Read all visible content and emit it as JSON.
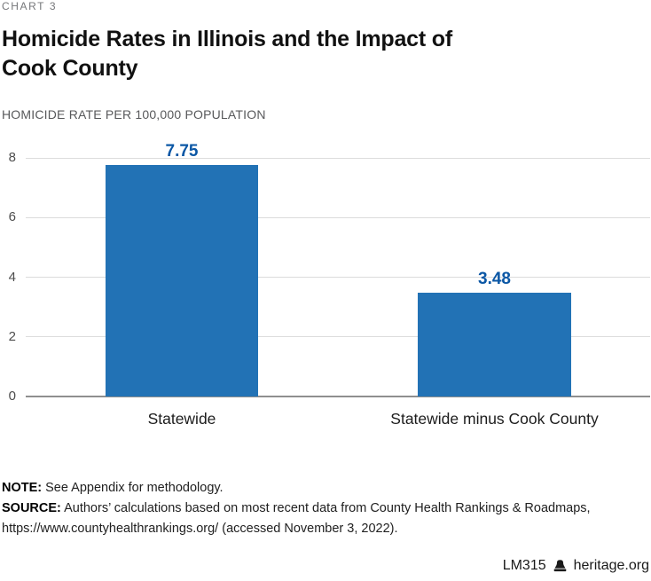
{
  "page": {
    "kicker": "CHART 3",
    "title_line1": "Homicide Rates in Illinois and the Impact of",
    "title_line2": "Cook County",
    "axis_caption": "HOMICIDE RATE PER 100,000 POPULATION"
  },
  "chart_data": {
    "type": "bar",
    "title": "Homicide Rates in Illinois and the Impact of Cook County",
    "ylabel": "HOMICIDE RATE PER 100,000 POPULATION",
    "categories": [
      "Statewide",
      "Statewide minus Cook County"
    ],
    "values": [
      7.75,
      3.48
    ],
    "value_labels": [
      "7.75",
      "3.48"
    ],
    "ylim": [
      0,
      8
    ],
    "yticks": [
      0,
      2,
      4,
      6,
      8
    ],
    "grid": true,
    "legend": "none",
    "colors": {
      "bar": "#2272b5",
      "value_label": "#0b57a5",
      "gridline": "#dcdcdc",
      "zero_line": "#8f8f8f",
      "tick_label": "#4d4d4d"
    }
  },
  "notes": {
    "note_label": "NOTE:",
    "note_text": " See Appendix for methodology.",
    "source_label": "SOURCE:",
    "source_text": " Authors’ calculations based on most recent data from County Health Rankings & Roadmaps,",
    "source_text_line2": "https://www.countyhealthrankings.org/ (accessed November 3, 2022)."
  },
  "footer": {
    "doc_id": "LM315",
    "brand": "heritage.org",
    "icon": "liberty-bell-icon"
  }
}
